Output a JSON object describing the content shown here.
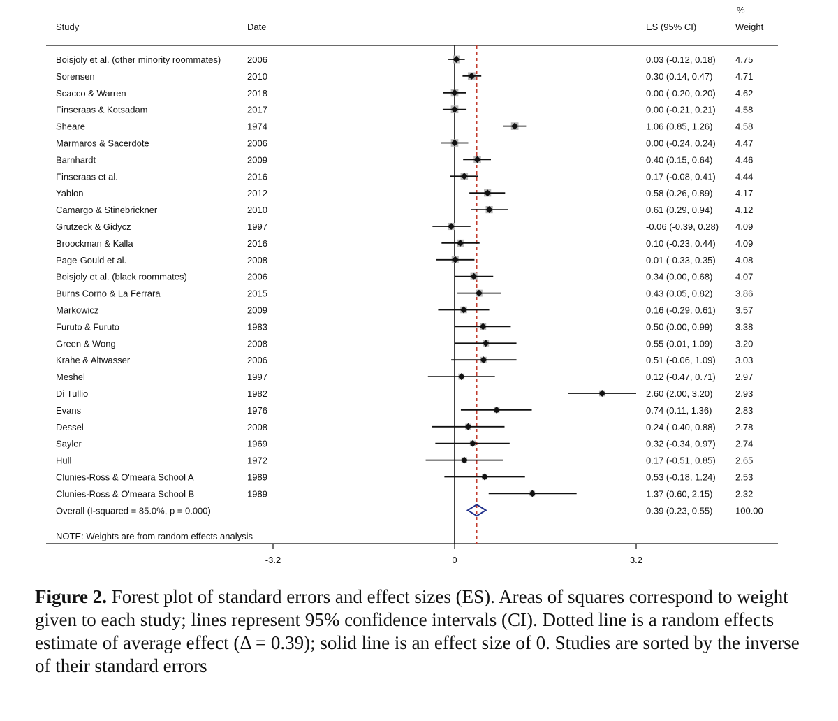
{
  "chart_data": {
    "type": "forest",
    "headers": {
      "study": "Study",
      "date": "Date",
      "es": "ES (95% CI)",
      "weight_pct": "%",
      "weight": "Weight"
    },
    "studies": [
      {
        "name": "Boisjoly et al. (other minority roommates)",
        "date": "2006",
        "es": 0.03,
        "lo": -0.12,
        "hi": 0.18,
        "es_text": "0.03 (-0.12, 0.18)",
        "weight": "4.75"
      },
      {
        "name": "Sorensen",
        "date": "2010",
        "es": 0.3,
        "lo": 0.14,
        "hi": 0.47,
        "es_text": "0.30 (0.14, 0.47)",
        "weight": "4.71"
      },
      {
        "name": "Scacco & Warren",
        "date": "2018",
        "es": 0.0,
        "lo": -0.2,
        "hi": 0.2,
        "es_text": "0.00 (-0.20, 0.20)",
        "weight": "4.62"
      },
      {
        "name": "Finseraas & Kotsadam",
        "date": "2017",
        "es": 0.0,
        "lo": -0.21,
        "hi": 0.21,
        "es_text": "0.00 (-0.21, 0.21)",
        "weight": "4.58"
      },
      {
        "name": "Sheare",
        "date": "1974",
        "es": 1.06,
        "lo": 0.85,
        "hi": 1.26,
        "es_text": "1.06 (0.85, 1.26)",
        "weight": "4.58"
      },
      {
        "name": "Marmaros & Sacerdote",
        "date": "2006",
        "es": 0.0,
        "lo": -0.24,
        "hi": 0.24,
        "es_text": "0.00 (-0.24, 0.24)",
        "weight": "4.47"
      },
      {
        "name": "Barnhardt",
        "date": "2009",
        "es": 0.4,
        "lo": 0.15,
        "hi": 0.64,
        "es_text": "0.40 (0.15, 0.64)",
        "weight": "4.46"
      },
      {
        "name": "Finseraas et al.",
        "date": "2016",
        "es": 0.17,
        "lo": -0.08,
        "hi": 0.41,
        "es_text": "0.17 (-0.08, 0.41)",
        "weight": "4.44"
      },
      {
        "name": "Yablon",
        "date": "2012",
        "es": 0.58,
        "lo": 0.26,
        "hi": 0.89,
        "es_text": "0.58 (0.26, 0.89)",
        "weight": "4.17"
      },
      {
        "name": "Camargo & Stinebrickner",
        "date": "2010",
        "es": 0.61,
        "lo": 0.29,
        "hi": 0.94,
        "es_text": "0.61 (0.29, 0.94)",
        "weight": "4.12"
      },
      {
        "name": "Grutzeck & Gidycz",
        "date": "1997",
        "es": -0.06,
        "lo": -0.39,
        "hi": 0.28,
        "es_text": "-0.06 (-0.39, 0.28)",
        "weight": "4.09"
      },
      {
        "name": "Broockman & Kalla",
        "date": "2016",
        "es": 0.1,
        "lo": -0.23,
        "hi": 0.44,
        "es_text": "0.10 (-0.23, 0.44)",
        "weight": "4.09"
      },
      {
        "name": "Page-Gould et al.",
        "date": "2008",
        "es": 0.01,
        "lo": -0.33,
        "hi": 0.35,
        "es_text": "0.01 (-0.33, 0.35)",
        "weight": "4.08"
      },
      {
        "name": "Boisjoly et al. (black roommates)",
        "date": "2006",
        "es": 0.34,
        "lo": 0.0,
        "hi": 0.68,
        "es_text": "0.34 (0.00, 0.68)",
        "weight": "4.07"
      },
      {
        "name": "Burns Corno & La Ferrara",
        "date": "2015",
        "es": 0.43,
        "lo": 0.05,
        "hi": 0.82,
        "es_text": "0.43 (0.05, 0.82)",
        "weight": "3.86"
      },
      {
        "name": "Markowicz",
        "date": "2009",
        "es": 0.16,
        "lo": -0.29,
        "hi": 0.61,
        "es_text": "0.16 (-0.29, 0.61)",
        "weight": "3.57"
      },
      {
        "name": "Furuto & Furuto",
        "date": "1983",
        "es": 0.5,
        "lo": 0.0,
        "hi": 0.99,
        "es_text": "0.50 (0.00, 0.99)",
        "weight": "3.38"
      },
      {
        "name": "Green & Wong",
        "date": "2008",
        "es": 0.55,
        "lo": 0.01,
        "hi": 1.09,
        "es_text": "0.55 (0.01, 1.09)",
        "weight": "3.20"
      },
      {
        "name": "Krahe & Altwasser",
        "date": "2006",
        "es": 0.51,
        "lo": -0.06,
        "hi": 1.09,
        "es_text": "0.51 (-0.06, 1.09)",
        "weight": "3.03"
      },
      {
        "name": "Meshel",
        "date": "1997",
        "es": 0.12,
        "lo": -0.47,
        "hi": 0.71,
        "es_text": "0.12 (-0.47, 0.71)",
        "weight": "2.97"
      },
      {
        "name": "Di Tullio",
        "date": "1982",
        "es": 2.6,
        "lo": 2.0,
        "hi": 3.2,
        "es_text": "2.60 (2.00, 3.20)",
        "weight": "2.93"
      },
      {
        "name": "Evans",
        "date": "1976",
        "es": 0.74,
        "lo": 0.11,
        "hi": 1.36,
        "es_text": "0.74 (0.11, 1.36)",
        "weight": "2.83"
      },
      {
        "name": "Dessel",
        "date": "2008",
        "es": 0.24,
        "lo": -0.4,
        "hi": 0.88,
        "es_text": "0.24 (-0.40, 0.88)",
        "weight": "2.78"
      },
      {
        "name": "Sayler",
        "date": "1969",
        "es": 0.32,
        "lo": -0.34,
        "hi": 0.97,
        "es_text": "0.32 (-0.34, 0.97)",
        "weight": "2.74"
      },
      {
        "name": "Hull",
        "date": "1972",
        "es": 0.17,
        "lo": -0.51,
        "hi": 0.85,
        "es_text": "0.17 (-0.51, 0.85)",
        "weight": "2.65"
      },
      {
        "name": "Clunies-Ross & O'meara School A",
        "date": "1989",
        "es": 0.53,
        "lo": -0.18,
        "hi": 1.24,
        "es_text": "0.53 (-0.18, 1.24)",
        "weight": "2.53"
      },
      {
        "name": "Clunies-Ross & O'meara School B",
        "date": "1989",
        "es": 1.37,
        "lo": 0.6,
        "hi": 2.15,
        "es_text": "1.37 (0.60, 2.15)",
        "weight": "2.32"
      }
    ],
    "overall": {
      "label": "Overall  (I-squared = 85.0%, p = 0.000)",
      "es": 0.39,
      "lo": 0.23,
      "hi": 0.55,
      "es_text": "0.39 (0.23, 0.55)",
      "weight": "100.00"
    },
    "note": "NOTE: Weights are from random effects analysis",
    "xaxis": {
      "range": [
        -3.2,
        3.2
      ],
      "ticks": [
        -3.2,
        0,
        3.2
      ],
      "tick_labels": [
        "-3.2",
        "0",
        "3.2"
      ]
    },
    "reference_line": 0,
    "estimate_line": 0.39,
    "colors": {
      "estimate_line": "#c0392b",
      "diamond": "#1f2f8a",
      "weight_box": "#b8b8b8",
      "ink": "#111111"
    }
  },
  "caption": {
    "label": "Figure 2.",
    "text": " Forest plot of standard errors and effect sizes (ES). Areas of squares correspond to weight given to each study; lines represent 95% confidence intervals (CI). Dotted line is a random effects estimate of average effect (Δ = 0.39); solid line is an effect size of 0. Studies are sorted by the inverse of their standard errors"
  }
}
